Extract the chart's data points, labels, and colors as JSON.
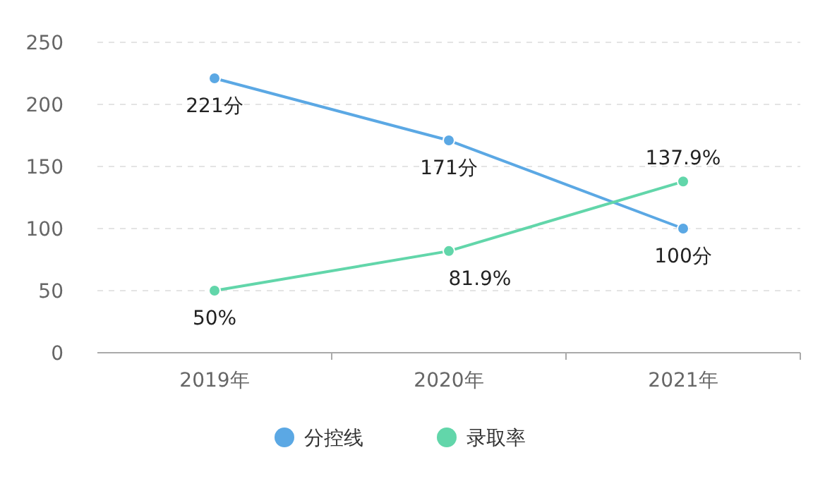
{
  "chart_data": {
    "type": "line",
    "categories": [
      "2019年",
      "2020年",
      "2021年"
    ],
    "series": [
      {
        "name": "分控线",
        "color": "#5ba8e4",
        "values": [
          221,
          171,
          100
        ],
        "value_labels": [
          "221分",
          "171分",
          "100分"
        ]
      },
      {
        "name": "录取率",
        "color": "#62d6aa",
        "values": [
          50,
          81.9,
          137.9
        ],
        "value_labels": [
          "50%",
          "81.9%",
          "137.9%"
        ]
      }
    ],
    "ylim": [
      0,
      250
    ],
    "yticks": [
      0,
      50,
      100,
      150,
      200,
      250
    ],
    "grid": "y",
    "legend": "bottom",
    "marker": "circle",
    "line_style": "solid"
  }
}
